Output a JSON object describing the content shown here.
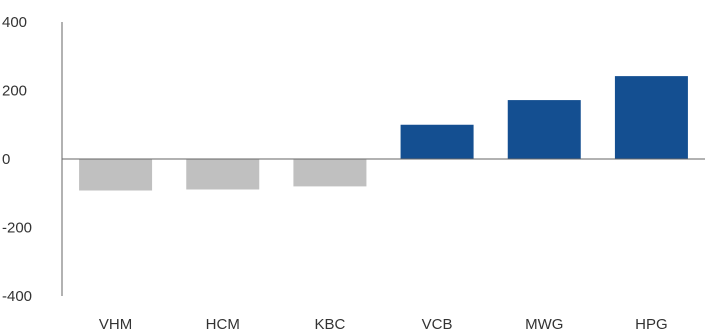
{
  "chart_data": {
    "type": "bar",
    "title": "",
    "xlabel": "",
    "ylabel": "",
    "categories": [
      "VHM",
      "HCM",
      "KBC",
      "VCB",
      "MWG",
      "HPG"
    ],
    "values": [
      -92,
      -89,
      -80,
      100,
      172,
      242
    ],
    "ylim": [
      -400,
      400
    ],
    "yticks": [
      400,
      200,
      0,
      -200,
      -400
    ],
    "ytick_labels": [
      "400",
      "200",
      "0",
      "-200",
      "-400"
    ],
    "grid": false,
    "legend": "none",
    "colors": {
      "negative": "#c0c0c0",
      "positive": "#144f91",
      "axis": "#666666"
    }
  }
}
